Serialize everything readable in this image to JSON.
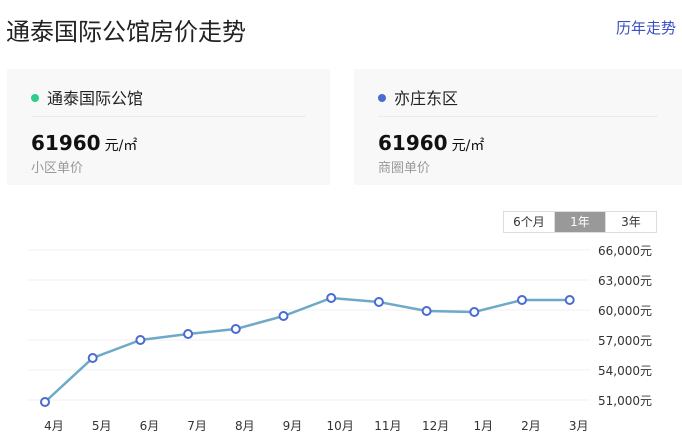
{
  "header": {
    "title": "通泰国际公馆房价走势",
    "history_link": "历年走势"
  },
  "cards": [
    {
      "name": "通泰国际公馆",
      "dot_color": "#2ecc8e",
      "price": "61960",
      "unit": "元/㎡",
      "label": "小区单价"
    },
    {
      "name": "亦庄东区",
      "dot_color": "#4a6bd0",
      "price": "61960",
      "unit": "元/㎡",
      "label": "商圈单价"
    }
  ],
  "range_tabs": [
    {
      "label": "6个月"
    },
    {
      "label": "1年",
      "active": true
    },
    {
      "label": "3年"
    }
  ],
  "chart_data": {
    "type": "line",
    "categories": [
      "4月",
      "5月",
      "6月",
      "7月",
      "8月",
      "9月",
      "10月",
      "11月",
      "12月",
      "1月",
      "2月",
      "3月"
    ],
    "series": [
      {
        "values": [
          50800,
          55200,
          57000,
          57600,
          58100,
          59400,
          61200,
          60800,
          59900,
          59800,
          61000,
          61000
        ],
        "color": "#6eaac8",
        "marker_color": "#4a6bd0"
      }
    ],
    "y_ticks": [
      66000,
      63000,
      60000,
      57000,
      54000,
      51000
    ],
    "y_tick_labels": [
      "66,000元",
      "63,000元",
      "60,000元",
      "57,000元",
      "54,000元",
      "51,000元"
    ],
    "ylim": [
      51000,
      66000
    ],
    "grid": true
  }
}
